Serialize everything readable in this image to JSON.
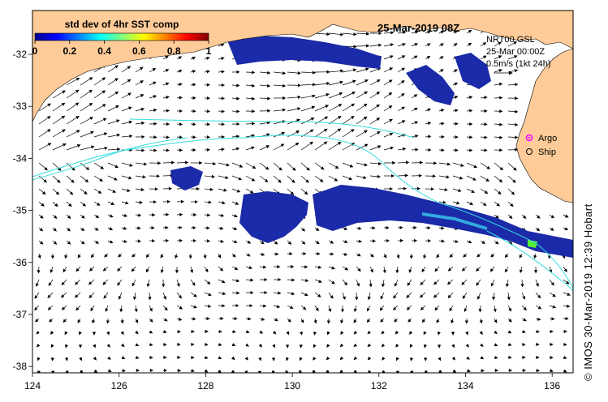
{
  "colorbar": {
    "title": "std dev of 4hr SST comp",
    "ticks": [
      "0",
      "0.2",
      "0.4",
      "0.6",
      "0.8",
      "1"
    ],
    "colors": [
      "#00008b",
      "#0000ff",
      "#0080ff",
      "#00ffff",
      "#80ff80",
      "#ffff00",
      "#ff8000",
      "#ff0000",
      "#800000"
    ]
  },
  "header": {
    "date": "25-Mar-2019 08Z",
    "model": "NRT00 GSL",
    "time": "25-Mar 00:00Z",
    "scale": "0.5m/s (1kt 24h)"
  },
  "legend": {
    "argo": "Argo",
    "ship": "Ship",
    "argo_color": "#ff00ff"
  },
  "axes": {
    "x_ticks": [
      "124",
      "126",
      "128",
      "130",
      "132",
      "134",
      "136"
    ],
    "y_ticks": [
      "-32",
      "-33",
      "-34",
      "-35",
      "-36",
      "-37",
      "-38"
    ]
  },
  "credit": "© IMOS 30-Mar-2019 12:39 Hobart",
  "colors": {
    "land": "#ffcc99",
    "ocean": "#ffffff",
    "sst_patch": "#1a2aa8",
    "contour": "#33dddd"
  }
}
